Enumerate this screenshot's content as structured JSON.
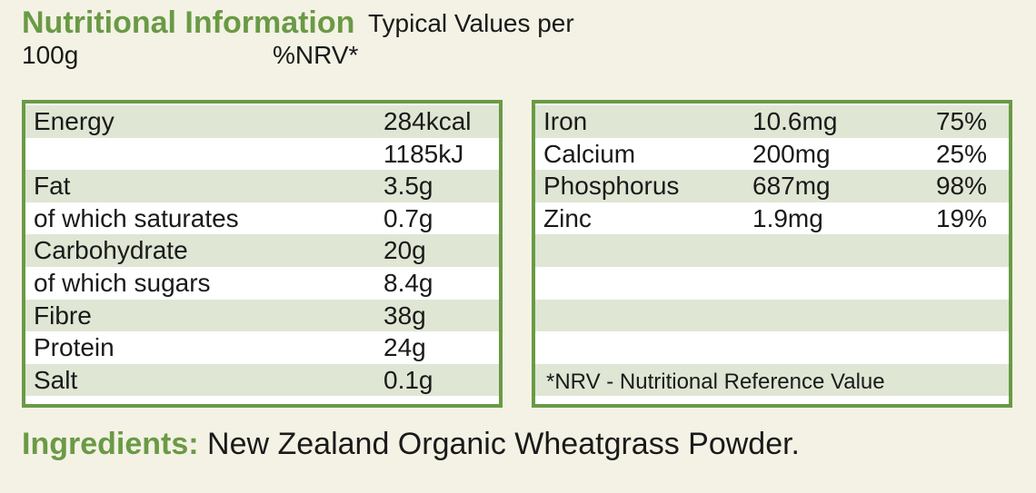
{
  "header": {
    "title": "Nutritional Information",
    "subtitle": "Typical Values per",
    "per": "100g",
    "nrv": "%NRV*"
  },
  "left_table": {
    "rows": [
      {
        "label": "Energy",
        "value": "284kcal"
      },
      {
        "value": "1185kJ"
      },
      {
        "label": "Fat",
        "value": "3.5g"
      },
      {
        "label": "of which saturates",
        "value": "0.7g"
      },
      {
        "label": "Carbohydrate",
        "value": "20g"
      },
      {
        "label": "of which sugars",
        "value": "8.4g"
      },
      {
        "label": "Fibre",
        "value": "38g"
      },
      {
        "label": "Protein",
        "value": "24g"
      },
      {
        "label": "Salt",
        "value": "0.1g"
      }
    ]
  },
  "right_table": {
    "rows": [
      [
        "Iron",
        "10.6mg",
        "75%"
      ],
      [
        "Calcium",
        "200mg",
        "25%"
      ],
      [
        "Phosphorus",
        "687mg",
        "98%"
      ],
      [
        "Zinc",
        "1.9mg",
        "19%"
      ]
    ],
    "footnote": "*NRV - Nutritional Reference Value"
  },
  "ingredients": {
    "label": "Ingredients:",
    "text": "New Zealand Organic Wheatgrass Powder."
  }
}
